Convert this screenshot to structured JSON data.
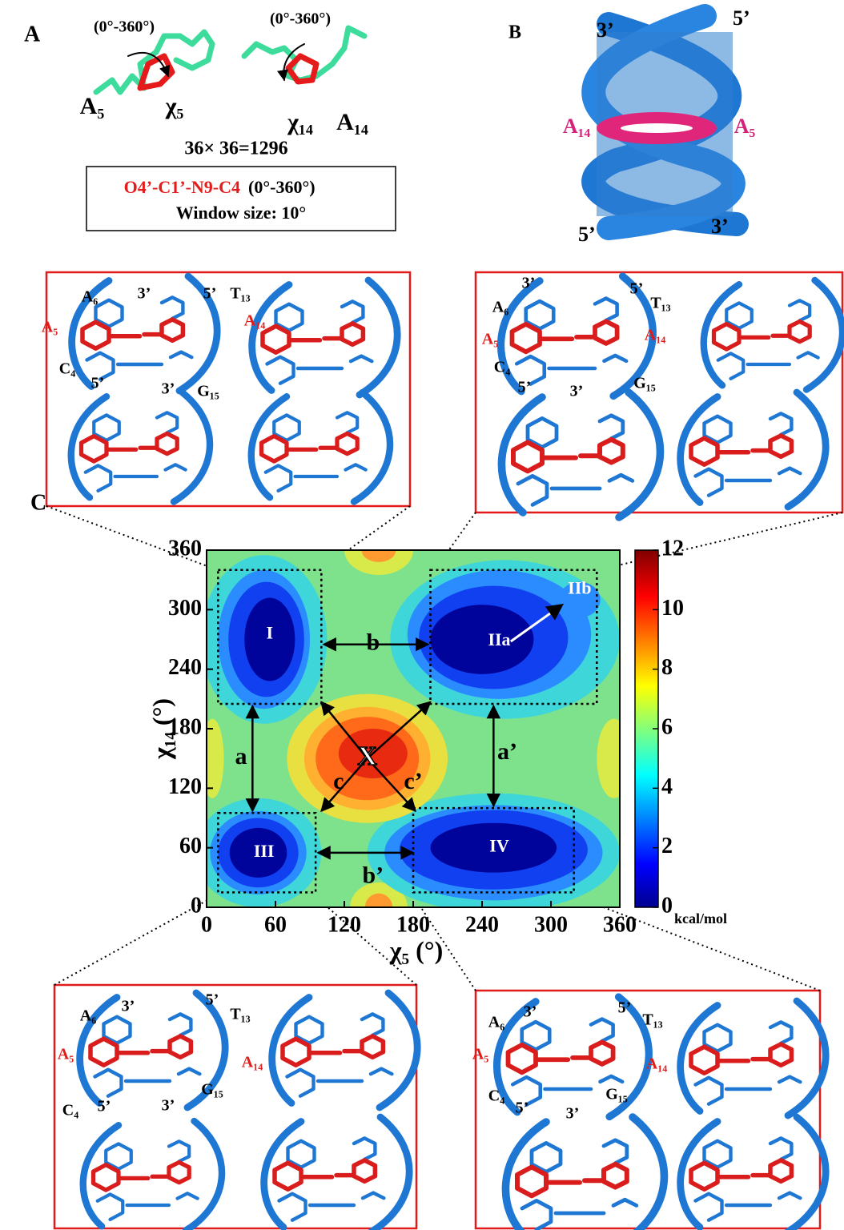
{
  "panel_labels": [
    "A",
    "B",
    "C"
  ],
  "panel_a": {
    "range_labels": [
      "(0°-360°)",
      "(0°-360°)"
    ],
    "residues": [
      "A₅",
      "χ₅",
      "χ₁₄",
      "A₁₄"
    ],
    "grid_size": "36× 36=1296",
    "dihedral": "O4’-C1’-N9-C4",
    "dihedral_range": "(0°-360°)",
    "window": "Window size: 10°"
  },
  "panel_b": {
    "labels": [
      "3’",
      "5’",
      "A₁₄",
      "A₅",
      "5’",
      "3’"
    ]
  },
  "structure_boxes": [
    {
      "labels": [
        "A₆",
        "3’",
        "5’",
        "T₁₃",
        "A₅",
        "A₁₄",
        "C₄",
        "5’",
        "3’",
        "G₁₅"
      ]
    },
    {
      "labels": [
        "A₆",
        "3’",
        "5’",
        "T₁₃",
        "A₅",
        "A₁₄",
        "C₄",
        "5’",
        "3’",
        "G₁₅"
      ]
    },
    {
      "labels": [
        "A₆",
        "3’",
        "5’",
        "T₁₃",
        "A₅",
        "A₁₄",
        "C₄",
        "5’",
        "3’",
        "G₁₅"
      ]
    },
    {
      "labels": [
        "A₆",
        "3’",
        "5’",
        "T₁₃",
        "A₅",
        "A₁₄",
        "C₄",
        "5’",
        "3’",
        "G₁₅"
      ]
    }
  ],
  "chart_data": {
    "type": "contour",
    "xlabel": "χ₅ (°)",
    "ylabel": "χ₁₄ (°)",
    "xlim": [
      0,
      360
    ],
    "ylim": [
      0,
      360
    ],
    "xticks": [
      0,
      60,
      120,
      180,
      240,
      300,
      360
    ],
    "yticks": [
      0,
      60,
      120,
      180,
      240,
      300,
      360
    ],
    "colorbar": {
      "lim": [
        0,
        12
      ],
      "ticks": [
        0,
        2,
        4,
        6,
        8,
        10,
        12
      ],
      "unit": "kcal/mol"
    },
    "regions": [
      "I",
      "IIa",
      "IIb",
      "III",
      "IV"
    ],
    "paths": [
      "a",
      "b",
      "c",
      "a’",
      "b’",
      "c’"
    ],
    "transition": "X"
  }
}
